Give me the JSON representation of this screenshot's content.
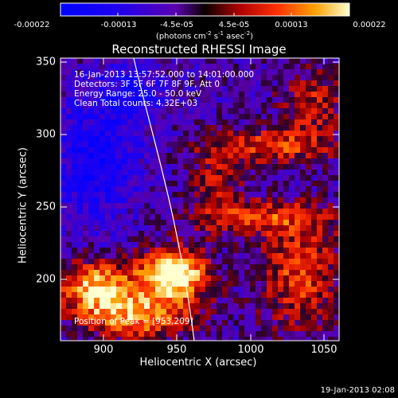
{
  "colorbar": {
    "ticks": [
      "-0.00022",
      "-0.00013",
      "-4.5e-05",
      "4.5e-05",
      "0.00013",
      "0.00022"
    ],
    "unit_text": "(photons cm",
    "unit_exp1": "-2",
    "unit_mid": " s",
    "unit_exp2": "-1",
    "unit_mid2": " asec",
    "unit_exp3": "-2",
    "unit_end": ")"
  },
  "plot": {
    "title": "Reconstructed RHESSI Image",
    "xlabel": "Heliocentric X (arcsec)",
    "ylabel": "Heliocentric Y (arcsec)",
    "x_ticks": [
      "900",
      "950",
      "1000",
      "1050"
    ],
    "y_ticks": [
      "350",
      "300",
      "250",
      "200"
    ]
  },
  "annotations": {
    "time_range": "16-Jan-2013 13:57:52.000 to 14:01:00.000",
    "detectors": "Detectors: 3F 5F 6F 7F 8F 9F, Att 0",
    "energy": "Energy Range: 25.0 - 50.0 keV",
    "clean": "Clean     Total counts: 4.32E+03",
    "peak": "Position of Peak = [953,209]"
  },
  "footer": {
    "date": "19-Jan-2013 02:08"
  },
  "chart_data": {
    "type": "heatmap",
    "title": "Reconstructed RHESSI Image",
    "xlabel": "Heliocentric X (arcsec)",
    "ylabel": "Heliocentric Y (arcsec)",
    "xlim": [
      868,
      1058
    ],
    "ylim": [
      158,
      353
    ],
    "peak": [
      953,
      209
    ],
    "colorbar_range": [
      -0.00022,
      0.00022
    ],
    "colorbar_ticks": [
      -0.00022,
      -0.00013,
      -4.5e-05,
      4.5e-05,
      0.00013,
      0.00022
    ]
  }
}
